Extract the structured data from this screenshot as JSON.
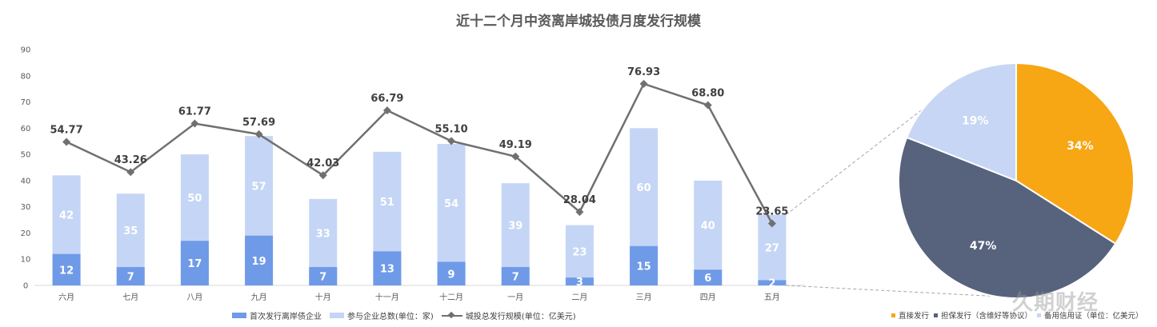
{
  "chart_data": [
    {
      "type": "bar",
      "title": "近十二个月中资离岸城投债月度发行规模",
      "categories": [
        "六月",
        "七月",
        "八月",
        "九月",
        "十月",
        "十一月",
        "十二月",
        "一月",
        "二月",
        "三月",
        "四月",
        "五月"
      ],
      "ylim": [
        0,
        90
      ],
      "yticks": [
        0,
        10,
        20,
        30,
        40,
        50,
        60,
        70,
        80,
        90
      ],
      "stacked": true,
      "series": [
        {
          "name": "首次发行离岸债企业",
          "kind": "bar",
          "color": "#6f9ae8",
          "values": [
            12,
            7,
            17,
            19,
            7,
            13,
            9,
            7,
            3,
            15,
            6,
            2
          ]
        },
        {
          "name": "参与企业总数(单位：家)",
          "kind": "bar",
          "color": "#c5d5f5",
          "values": [
            42,
            35,
            50,
            57,
            33,
            51,
            54,
            39,
            23,
            60,
            40,
            27
          ]
        },
        {
          "name": "城投总发行规模(单位：亿美元)",
          "kind": "line",
          "color": "#707070",
          "values": [
            54.77,
            43.26,
            61.77,
            57.69,
            42.03,
            66.79,
            55.1,
            49.19,
            28.04,
            76.93,
            68.8,
            23.65
          ],
          "labels": [
            "54.77",
            "43.26",
            "61.77",
            "57.69",
            "42.03",
            "66.79",
            "55.10",
            "49.19",
            "28.04",
            "76.93",
            "68.80",
            "23.65"
          ]
        }
      ],
      "legend_position": "bottom",
      "grid": false
    },
    {
      "type": "pie",
      "slices": [
        {
          "name": "直接发行",
          "value": 34,
          "label": "34%",
          "color": "#f7a614"
        },
        {
          "name": "担保发行（含维好等协议）",
          "value": 47,
          "label": "47%",
          "color": "#57627d"
        },
        {
          "name": "备用信用证（单位：亿美元）",
          "value": 19,
          "label": "19%",
          "color": "#c7d6f4"
        }
      ],
      "legend_position": "bottom"
    }
  ],
  "legend": {
    "bar_first": "首次发行离岸债企业",
    "bar_total": "参与企业总数(单位：家)",
    "line": "城投总发行规模(单位：亿美元)",
    "pie_a": "直接发行",
    "pie_b": "担保发行（含维好等协议）",
    "pie_c": "备用信用证（单位：亿美元）"
  },
  "watermark": "久期财经"
}
